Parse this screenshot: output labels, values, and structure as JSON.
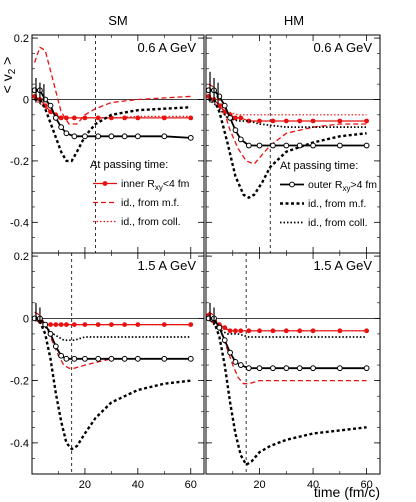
{
  "figure": {
    "column_titles": [
      "SM",
      "HM"
    ],
    "ylabel_main": "< v",
    "ylabel_sub": "2",
    "ylabel_end": " >",
    "xlabel": "time (fm/c)"
  },
  "chart_data": [
    {
      "id": "sm-top",
      "type": "line",
      "panel_label": "0.6 A GeV",
      "xlim": [
        0,
        65
      ],
      "ylim": [
        -0.5,
        0.21
      ],
      "yticks": [
        0.2,
        0,
        -0.2,
        -0.4
      ],
      "xticks": [
        20,
        40,
        60
      ],
      "show_xtick_labels": false,
      "vline": 24,
      "legend": {
        "title": "At passing time:",
        "entries": [
          {
            "series": "inner",
            "label_pre": "inner R",
            "label_sub": "xy",
            "label_post": "<4 fm"
          },
          {
            "series": "inner_mf",
            "label_pre": "id., from m.f.",
            "label_sub": "",
            "label_post": ""
          },
          {
            "series": "inner_coll",
            "label_pre": "id., from coll.",
            "label_sub": "",
            "label_post": ""
          }
        ]
      },
      "series": [
        {
          "key": "inner_mf",
          "color": "#e8110f",
          "dash": "5,3",
          "width": 1.3,
          "marker": "none",
          "x": [
            1,
            3,
            5,
            8,
            11,
            14,
            17,
            20,
            24,
            30,
            40,
            50,
            60
          ],
          "y": [
            0.12,
            0.17,
            0.16,
            0.06,
            -0.04,
            -0.08,
            -0.08,
            -0.05,
            -0.03,
            -0.01,
            0.0,
            0.005,
            0.01
          ]
        },
        {
          "key": "inner_coll",
          "color": "#e8110f",
          "dash": "1.5,2",
          "width": 1.2,
          "marker": "none",
          "x": [
            1,
            4,
            8,
            12,
            16,
            20,
            25,
            30,
            40,
            50,
            60
          ],
          "y": [
            0.0,
            -0.02,
            -0.05,
            -0.06,
            -0.06,
            -0.06,
            -0.06,
            -0.06,
            -0.055,
            -0.055,
            -0.055
          ]
        },
        {
          "key": "inner",
          "color": "#e8110f",
          "dash": "",
          "width": 1.2,
          "marker": "dot",
          "x": [
            1,
            3,
            5,
            7,
            9,
            11,
            13,
            16,
            20,
            25,
            30,
            35,
            40,
            50,
            60
          ],
          "y": [
            0.01,
            0.0,
            -0.02,
            -0.04,
            -0.05,
            -0.06,
            -0.06,
            -0.06,
            -0.06,
            -0.06,
            -0.06,
            -0.06,
            -0.06,
            -0.06,
            -0.06
          ]
        },
        {
          "key": "outer_mf",
          "color": "#000000",
          "dash": "3,2.5",
          "width": 2.4,
          "marker": "none",
          "x": [
            1,
            3,
            5,
            8,
            11,
            13,
            15,
            17,
            20,
            24,
            30,
            40,
            50,
            60
          ],
          "y": [
            0.0,
            0.0,
            -0.03,
            -0.1,
            -0.17,
            -0.2,
            -0.2,
            -0.17,
            -0.12,
            -0.08,
            -0.05,
            -0.035,
            -0.03,
            -0.025
          ]
        },
        {
          "key": "outer",
          "color": "#000000",
          "dash": "",
          "width": 1.8,
          "marker": "open",
          "x": [
            1,
            3,
            5,
            7,
            9,
            11,
            13,
            16,
            20,
            25,
            30,
            35,
            40,
            50,
            60
          ],
          "y": [
            0.03,
            0.03,
            0.0,
            -0.02,
            -0.06,
            -0.09,
            -0.11,
            -0.12,
            -0.12,
            -0.12,
            -0.12,
            -0.12,
            -0.12,
            -0.12,
            -0.125
          ]
        }
      ],
      "error_bars": [
        {
          "x": 1.5,
          "y": 0.03,
          "err": 0.04
        },
        {
          "x": 3.0,
          "y": 0.02,
          "err": 0.035
        },
        {
          "x": 4.5,
          "y": 0.02,
          "err": 0.03
        }
      ]
    },
    {
      "id": "hm-top",
      "type": "line",
      "panel_label": "0.6 A GeV",
      "xlim": [
        0,
        65
      ],
      "ylim": [
        -0.5,
        0.21
      ],
      "yticks": [
        0.2,
        0,
        -0.2,
        -0.4
      ],
      "xticks": [
        20,
        40,
        60
      ],
      "show_xtick_labels": false,
      "vline": 24,
      "legend": {
        "title": "At passing time:",
        "entries": [
          {
            "series": "outer",
            "label_pre": "outer R",
            "label_sub": "xy",
            "label_post": ">4 fm"
          },
          {
            "series": "outer_mf",
            "label_pre": "id., from m.f.",
            "label_sub": "",
            "label_post": ""
          },
          {
            "series": "outer_coll",
            "label_pre": "id., from coll.",
            "label_sub": "",
            "label_post": ""
          }
        ]
      },
      "series": [
        {
          "key": "inner_mf",
          "color": "#e8110f",
          "dash": "5,3",
          "width": 1.3,
          "marker": "none",
          "x": [
            1,
            3,
            6,
            9,
            12,
            15,
            18,
            20,
            24,
            30,
            40,
            50,
            60
          ],
          "y": [
            0.05,
            0.04,
            -0.02,
            -0.1,
            -0.16,
            -0.2,
            -0.21,
            -0.19,
            -0.15,
            -0.11,
            -0.09,
            -0.08,
            -0.08
          ]
        },
        {
          "key": "inner_coll",
          "color": "#e8110f",
          "dash": "1.5,2",
          "width": 1.2,
          "marker": "none",
          "x": [
            1,
            4,
            8,
            12,
            16,
            20,
            25,
            30,
            40,
            50,
            60
          ],
          "y": [
            0.0,
            -0.02,
            -0.04,
            -0.05,
            -0.05,
            -0.05,
            -0.05,
            -0.05,
            -0.05,
            -0.05,
            -0.05
          ]
        },
        {
          "key": "inner",
          "color": "#e8110f",
          "dash": "",
          "width": 1.2,
          "marker": "dot",
          "x": [
            1,
            3,
            5,
            7,
            9,
            11,
            13,
            16,
            20,
            25,
            30,
            35,
            40,
            50,
            60
          ],
          "y": [
            0.01,
            0.0,
            -0.02,
            -0.04,
            -0.05,
            -0.06,
            -0.06,
            -0.07,
            -0.07,
            -0.07,
            -0.07,
            -0.07,
            -0.07,
            -0.07,
            -0.07
          ]
        },
        {
          "key": "outer_coll",
          "color": "#000000",
          "dash": "1.5,2",
          "width": 1.7,
          "marker": "none",
          "x": [
            1,
            4,
            8,
            12,
            16,
            20,
            25,
            30,
            40,
            50,
            60
          ],
          "y": [
            0.0,
            -0.02,
            -0.06,
            -0.07,
            -0.07,
            -0.08,
            -0.085,
            -0.09,
            -0.09,
            -0.09,
            -0.09
          ]
        },
        {
          "key": "outer_mf",
          "color": "#000000",
          "dash": "3,2.5",
          "width": 2.4,
          "marker": "none",
          "x": [
            1,
            3,
            5,
            8,
            11,
            14,
            16,
            18,
            21,
            24,
            30,
            40,
            50,
            60
          ],
          "y": [
            0.0,
            0.0,
            -0.04,
            -0.14,
            -0.25,
            -0.31,
            -0.32,
            -0.31,
            -0.27,
            -0.22,
            -0.17,
            -0.14,
            -0.12,
            -0.11
          ]
        },
        {
          "key": "outer",
          "color": "#000000",
          "dash": "",
          "width": 1.8,
          "marker": "open",
          "x": [
            1,
            3,
            5,
            7,
            9,
            11,
            13,
            16,
            20,
            25,
            30,
            35,
            40,
            50,
            60
          ],
          "y": [
            0.03,
            0.03,
            0.01,
            -0.02,
            -0.06,
            -0.1,
            -0.13,
            -0.15,
            -0.15,
            -0.15,
            -0.15,
            -0.15,
            -0.15,
            -0.15,
            -0.15
          ]
        }
      ],
      "error_bars": [
        {
          "x": 1.5,
          "y": 0.04,
          "err": 0.05
        },
        {
          "x": 3.0,
          "y": 0.03,
          "err": 0.04
        },
        {
          "x": 4.5,
          "y": 0.02,
          "err": 0.035
        }
      ]
    },
    {
      "id": "sm-bottom",
      "type": "line",
      "panel_label": "1.5 A GeV",
      "xlim": [
        0,
        65
      ],
      "ylim": [
        -0.5,
        0.21
      ],
      "yticks": [
        0.2,
        0,
        -0.2,
        -0.4
      ],
      "xticks": [
        20,
        40,
        60
      ],
      "show_xtick_labels": true,
      "vline": 15,
      "series": [
        {
          "key": "inner_mf",
          "color": "#e8110f",
          "dash": "5,3",
          "width": 1.3,
          "marker": "none",
          "x": [
            1,
            3,
            5,
            8,
            10,
            12,
            14,
            16,
            20,
            25,
            30,
            40,
            50,
            60
          ],
          "y": [
            0.02,
            0.01,
            -0.02,
            -0.08,
            -0.12,
            -0.15,
            -0.16,
            -0.16,
            -0.15,
            -0.14,
            -0.13,
            -0.13,
            -0.13,
            -0.13
          ]
        },
        {
          "key": "inner_coll",
          "color": "#e8110f",
          "dash": "1.5,2",
          "width": 1.2,
          "marker": "none",
          "x": [
            1,
            5,
            10,
            20,
            40,
            60
          ],
          "y": [
            0.0,
            -0.02,
            -0.02,
            -0.02,
            -0.02,
            -0.02
          ]
        },
        {
          "key": "inner",
          "color": "#e8110f",
          "dash": "",
          "width": 1.2,
          "marker": "dot",
          "x": [
            1,
            3,
            5,
            7,
            9,
            11,
            13,
            16,
            20,
            25,
            30,
            35,
            40,
            50,
            60
          ],
          "y": [
            0.0,
            -0.01,
            -0.02,
            -0.02,
            -0.02,
            -0.02,
            -0.02,
            -0.02,
            -0.02,
            -0.02,
            -0.02,
            -0.02,
            -0.02,
            -0.02,
            -0.02
          ]
        },
        {
          "key": "outer_coll",
          "color": "#000000",
          "dash": "1.5,2",
          "width": 1.7,
          "marker": "none",
          "x": [
            1,
            4,
            8,
            12,
            16,
            20,
            25,
            30,
            40,
            50,
            60
          ],
          "y": [
            0.0,
            -0.02,
            -0.05,
            -0.07,
            -0.07,
            -0.06,
            -0.06,
            -0.06,
            -0.06,
            -0.06,
            -0.06
          ]
        },
        {
          "key": "outer_mf",
          "color": "#000000",
          "dash": "3,2.5",
          "width": 2.4,
          "marker": "none",
          "x": [
            1,
            3,
            5,
            7,
            9,
            11,
            13,
            15,
            17,
            20,
            24,
            30,
            40,
            50,
            60
          ],
          "y": [
            0.0,
            -0.01,
            -0.05,
            -0.13,
            -0.24,
            -0.33,
            -0.4,
            -0.42,
            -0.41,
            -0.37,
            -0.32,
            -0.27,
            -0.23,
            -0.21,
            -0.2
          ]
        },
        {
          "key": "outer",
          "color": "#000000",
          "dash": "",
          "width": 1.8,
          "marker": "open",
          "x": [
            1,
            3,
            5,
            7,
            9,
            11,
            13,
            16,
            20,
            25,
            30,
            35,
            40,
            50,
            60
          ],
          "y": [
            0.0,
            0.0,
            -0.02,
            -0.05,
            -0.09,
            -0.12,
            -0.13,
            -0.13,
            -0.13,
            -0.13,
            -0.13,
            -0.13,
            -0.13,
            -0.13,
            -0.13
          ]
        }
      ],
      "error_bars": [
        {
          "x": 1.5,
          "y": 0.02,
          "err": 0.03
        },
        {
          "x": 3.0,
          "y": 0.01,
          "err": 0.025
        }
      ]
    },
    {
      "id": "hm-bottom",
      "type": "line",
      "panel_label": "1.5 A GeV",
      "xlim": [
        0,
        65
      ],
      "ylim": [
        -0.5,
        0.21
      ],
      "yticks": [
        0.2,
        0,
        -0.2,
        -0.4
      ],
      "xticks": [
        20,
        40,
        60
      ],
      "show_xtick_labels": true,
      "vline": 15,
      "series": [
        {
          "key": "inner_mf",
          "color": "#e8110f",
          "dash": "5,3",
          "width": 1.3,
          "marker": "none",
          "x": [
            1,
            3,
            5,
            8,
            10,
            12,
            14,
            16,
            20,
            25,
            30,
            40,
            50,
            60
          ],
          "y": [
            0.02,
            0.01,
            -0.03,
            -0.1,
            -0.15,
            -0.19,
            -0.21,
            -0.21,
            -0.2,
            -0.2,
            -0.2,
            -0.2,
            -0.2,
            -0.2
          ]
        },
        {
          "key": "inner_coll",
          "color": "#e8110f",
          "dash": "1.5,2",
          "width": 1.2,
          "marker": "none",
          "x": [
            1,
            5,
            10,
            20,
            40,
            60
          ],
          "y": [
            0.0,
            -0.03,
            -0.04,
            -0.04,
            -0.04,
            -0.04
          ]
        },
        {
          "key": "inner",
          "color": "#e8110f",
          "dash": "",
          "width": 1.2,
          "marker": "dot",
          "x": [
            1,
            3,
            5,
            7,
            9,
            11,
            13,
            16,
            20,
            25,
            30,
            35,
            40,
            50,
            60
          ],
          "y": [
            0.01,
            -0.01,
            -0.02,
            -0.03,
            -0.04,
            -0.04,
            -0.04,
            -0.04,
            -0.04,
            -0.04,
            -0.04,
            -0.04,
            -0.04,
            -0.04,
            -0.04
          ]
        },
        {
          "key": "outer_coll",
          "color": "#000000",
          "dash": "1.5,2",
          "width": 1.7,
          "marker": "none",
          "x": [
            1,
            4,
            8,
            12,
            16,
            20,
            25,
            30,
            40,
            50,
            60
          ],
          "y": [
            0.0,
            -0.03,
            -0.05,
            -0.05,
            -0.06,
            -0.06,
            -0.06,
            -0.06,
            -0.06,
            -0.06,
            -0.06
          ]
        },
        {
          "key": "outer_mf",
          "color": "#000000",
          "dash": "3,2.5",
          "width": 2.4,
          "marker": "none",
          "x": [
            1,
            3,
            5,
            7,
            9,
            11,
            13,
            15,
            17,
            20,
            24,
            30,
            40,
            50,
            60
          ],
          "y": [
            0.0,
            -0.01,
            -0.06,
            -0.15,
            -0.27,
            -0.37,
            -0.44,
            -0.47,
            -0.46,
            -0.43,
            -0.41,
            -0.39,
            -0.37,
            -0.36,
            -0.35
          ]
        },
        {
          "key": "outer",
          "color": "#000000",
          "dash": "",
          "width": 1.8,
          "marker": "open",
          "x": [
            1,
            3,
            5,
            7,
            9,
            11,
            13,
            16,
            20,
            25,
            30,
            35,
            40,
            50,
            60
          ],
          "y": [
            0.0,
            0.0,
            -0.03,
            -0.07,
            -0.11,
            -0.14,
            -0.15,
            -0.16,
            -0.16,
            -0.16,
            -0.16,
            -0.16,
            -0.16,
            -0.16,
            -0.16
          ]
        }
      ],
      "error_bars": [
        {
          "x": 1.5,
          "y": 0.02,
          "err": 0.03
        },
        {
          "x": 3.0,
          "y": 0.01,
          "err": 0.025
        }
      ]
    }
  ]
}
